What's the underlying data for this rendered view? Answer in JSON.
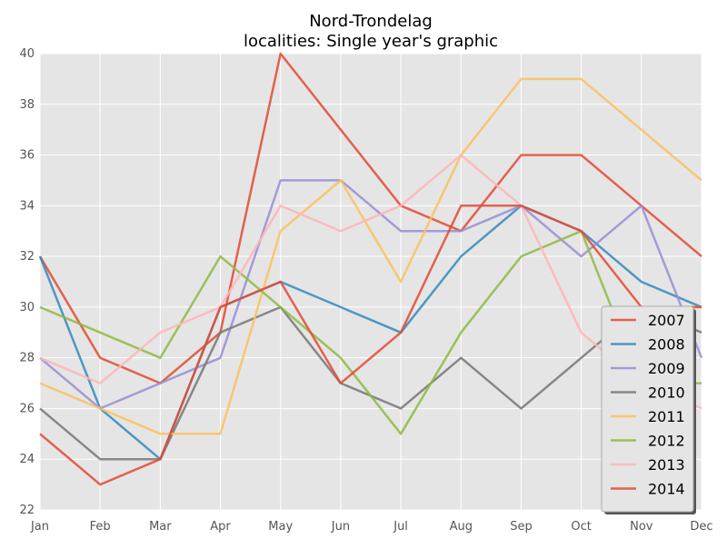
{
  "chart_data": {
    "type": "line",
    "title": "Nord-Trondelag",
    "subtitle": "localities: Single year's graphic",
    "categories": [
      "Jan",
      "Feb",
      "Mar",
      "Apr",
      "May",
      "Jun",
      "Jul",
      "Aug",
      "Sep",
      "Oct",
      "Nov",
      "Dec"
    ],
    "ylim": [
      22,
      40
    ],
    "yticks": [
      22,
      24,
      26,
      28,
      30,
      32,
      34,
      36,
      38,
      40
    ],
    "grid": true,
    "legend_position": "bottom-right",
    "series": [
      {
        "name": "2007",
        "color": "#E24A33",
        "values": [
          32,
          28,
          27,
          29,
          40,
          37,
          34,
          33,
          36,
          36,
          34,
          32
        ]
      },
      {
        "name": "2008",
        "color": "#348ABD",
        "values": [
          32,
          26,
          24,
          30,
          31,
          30,
          29,
          32,
          34,
          33,
          31,
          30
        ]
      },
      {
        "name": "2009",
        "color": "#988ED5",
        "values": [
          28,
          26,
          27,
          28,
          35,
          35,
          33,
          33,
          34,
          32,
          34,
          28
        ]
      },
      {
        "name": "2010",
        "color": "#777777",
        "values": [
          26,
          24,
          24,
          29,
          30,
          27,
          26,
          28,
          26,
          28,
          30,
          29
        ]
      },
      {
        "name": "2011",
        "color": "#FBC15E",
        "values": [
          27,
          26,
          25,
          25,
          33,
          35,
          31,
          36,
          39,
          39,
          37,
          35
        ]
      },
      {
        "name": "2012",
        "color": "#8EBA42",
        "values": [
          30,
          29,
          28,
          32,
          30,
          28,
          25,
          29,
          32,
          33,
          27,
          27
        ]
      },
      {
        "name": "2013",
        "color": "#FFB5B8",
        "values": [
          28,
          27,
          29,
          30,
          34,
          33,
          34,
          36,
          34,
          29,
          27,
          26
        ]
      },
      {
        "name": "2014",
        "color": "#E24A33",
        "values": [
          25,
          23,
          24,
          30,
          31,
          27,
          29,
          34,
          34,
          33,
          30,
          30
        ]
      }
    ]
  }
}
